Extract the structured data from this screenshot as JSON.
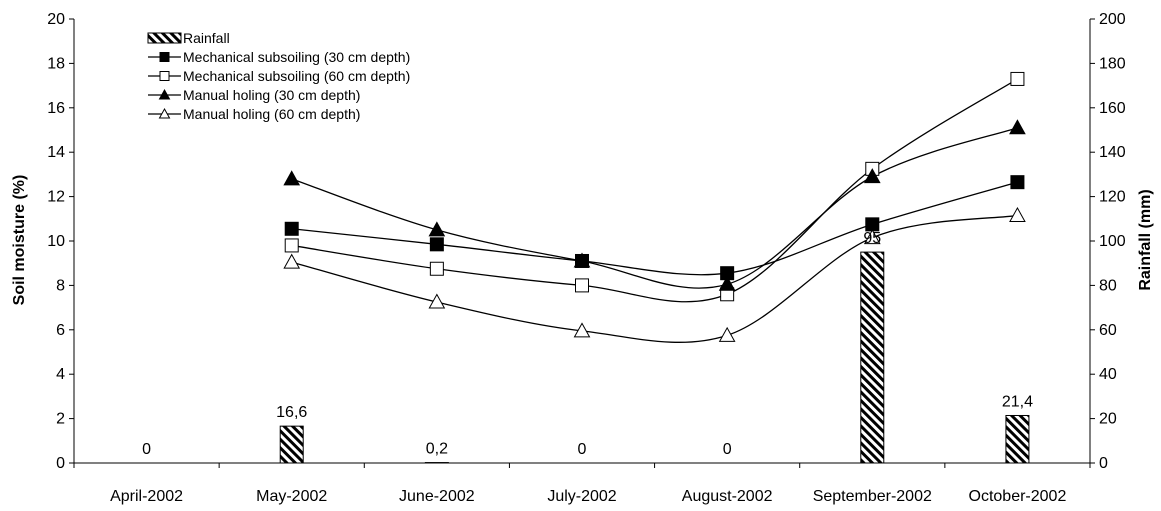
{
  "chart_data": {
    "type": "bar+line",
    "categories": [
      "April-2002",
      "May-2002",
      "June-2002",
      "July-2002",
      "August-2002",
      "September-2002",
      "October-2002"
    ],
    "ylabel": "Soil moisture (%)",
    "y2label": "Rainfall (mm)",
    "ylim": [
      0,
      20
    ],
    "y2lim": [
      0,
      200
    ],
    "yticks": [
      "0",
      "2",
      "4",
      "6",
      "8",
      "10",
      "12",
      "14",
      "16",
      "18",
      "20"
    ],
    "y2ticks": [
      "0",
      "20",
      "40",
      "60",
      "80",
      "100",
      "120",
      "140",
      "160",
      "180",
      "200"
    ],
    "grid": false,
    "legend_position": "top-left",
    "bars": {
      "name": "Rainfall",
      "axis": "right",
      "values": [
        0,
        16.6,
        0.2,
        0,
        0,
        95,
        21.4
      ],
      "labels": [
        "0",
        "16,6",
        "0,2",
        "0",
        "0",
        "95",
        "21,4"
      ]
    },
    "series": [
      {
        "name": "Mechanical subsoiling (30 cm depth)",
        "marker": "filled-square",
        "values": [
          null,
          10.55,
          9.85,
          9.1,
          8.55,
          10.75,
          12.65
        ]
      },
      {
        "name": "Mechanical subsoiling (60 cm depth)",
        "marker": "open-square",
        "values": [
          null,
          9.8,
          8.75,
          8.0,
          7.6,
          13.25,
          17.3
        ]
      },
      {
        "name": "Manual holing (30 cm depth)",
        "marker": "filled-triangle",
        "values": [
          null,
          12.8,
          10.5,
          9.1,
          8.05,
          12.9,
          15.1
        ]
      },
      {
        "name": "Manual holing (60 cm depth)",
        "marker": "open-triangle",
        "values": [
          null,
          9.05,
          7.25,
          5.95,
          5.75,
          10.15,
          11.15
        ]
      }
    ]
  }
}
